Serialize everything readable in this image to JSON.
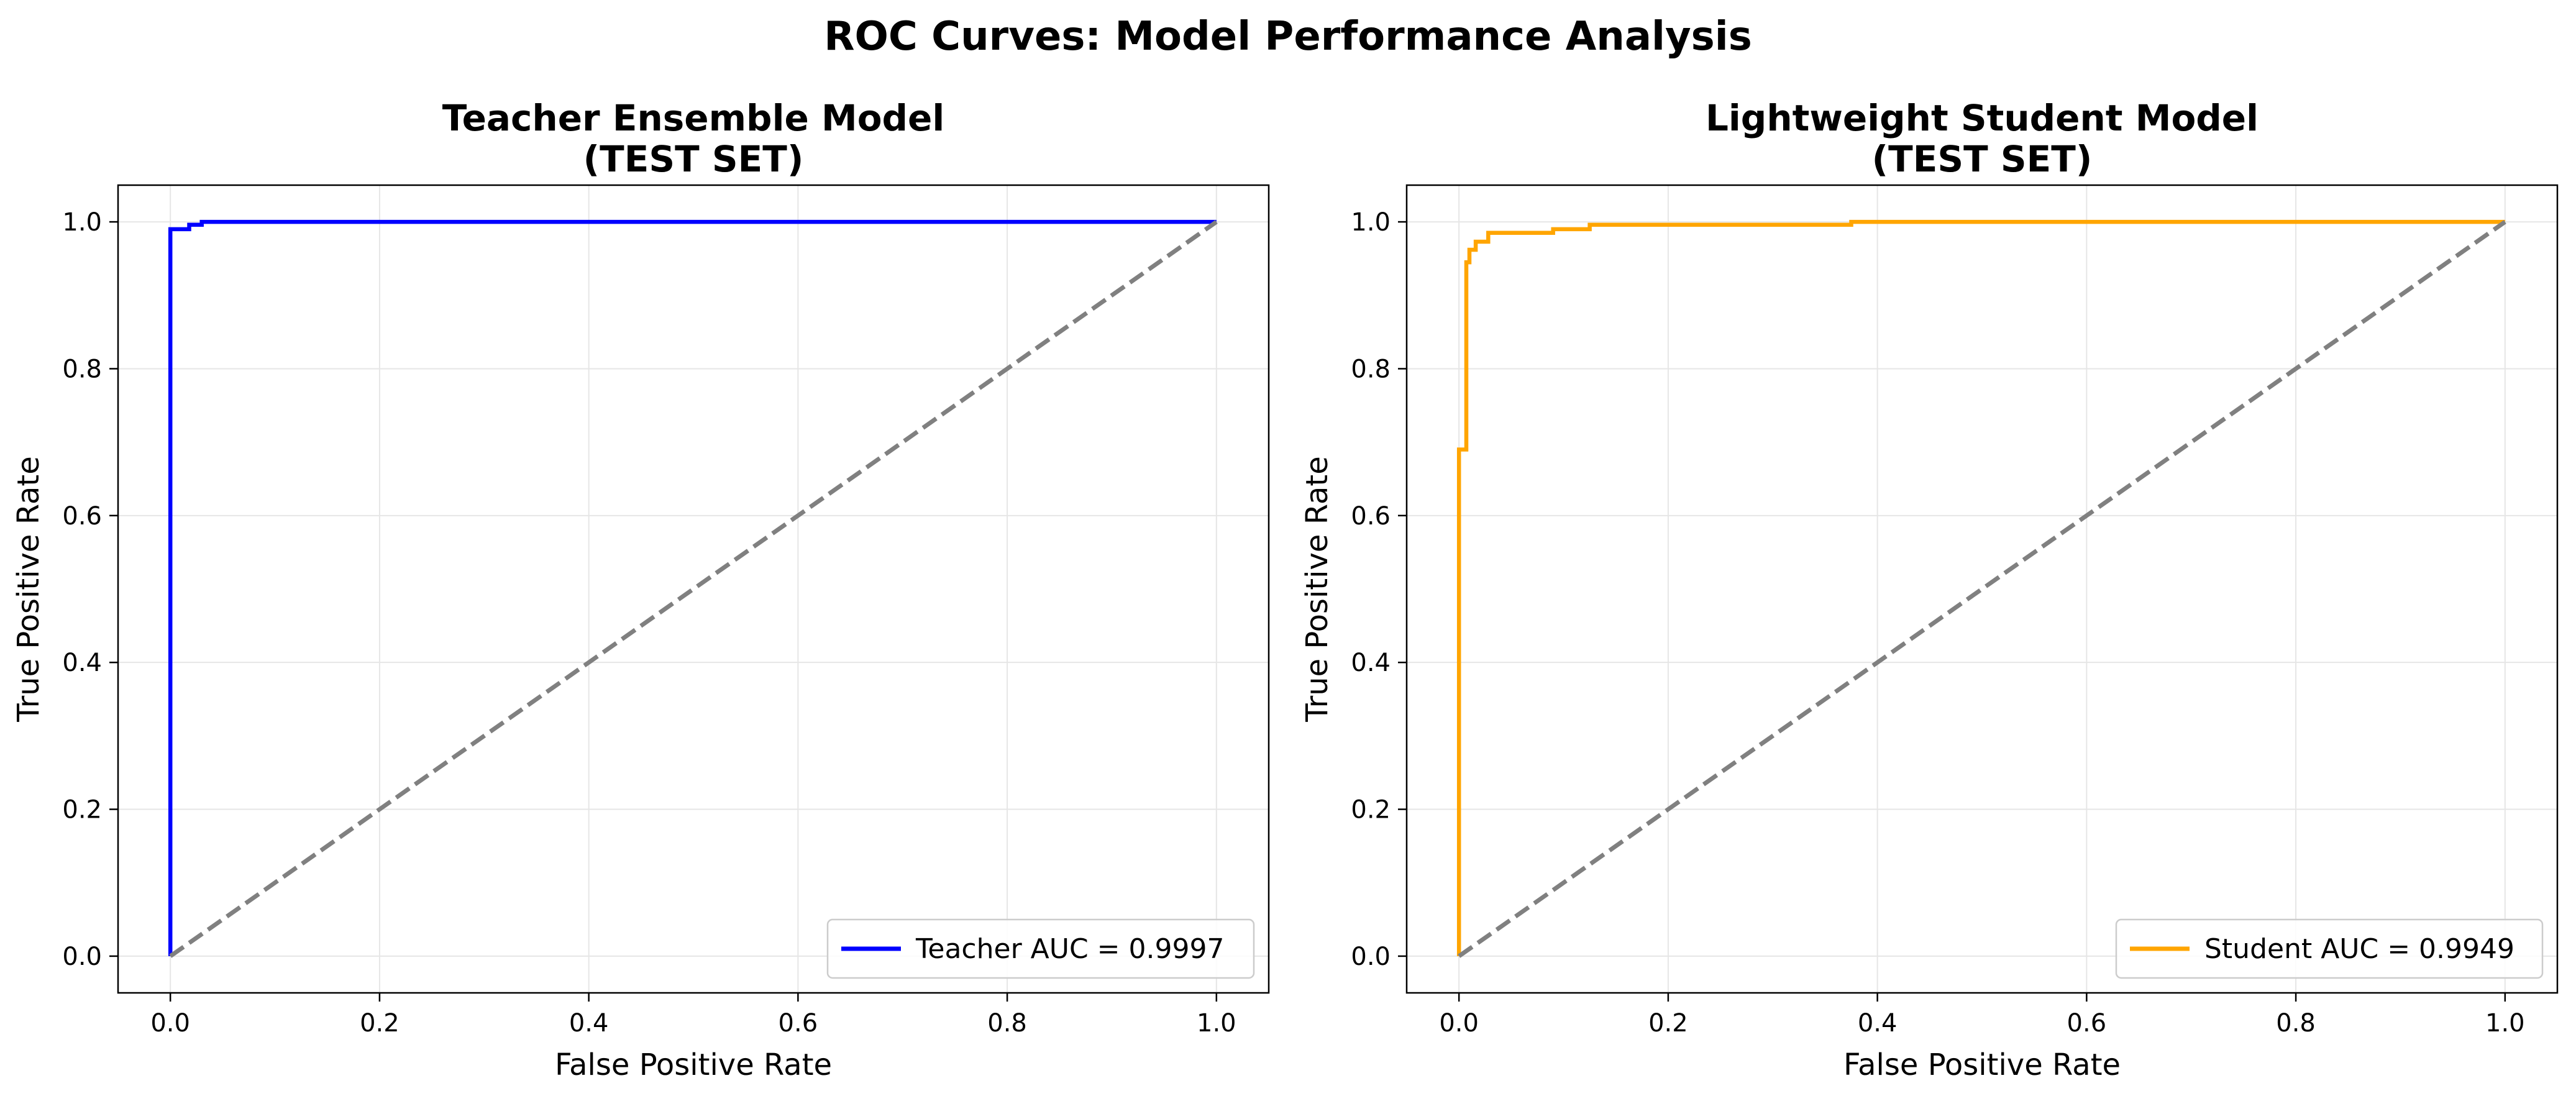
{
  "figure": {
    "title": "ROC Curves: Model Performance Analysis"
  },
  "chart_data": [
    {
      "type": "line",
      "title": "Teacher Ensemble Model\n(TEST SET)",
      "xlabel": "False Positive Rate",
      "ylabel": "True Positive Rate",
      "xlim": [
        -0.05,
        1.05
      ],
      "ylim": [
        -0.05,
        1.05
      ],
      "xticks": [
        "0.0",
        "0.2",
        "0.4",
        "0.6",
        "0.8",
        "1.0"
      ],
      "yticks": [
        "0.0",
        "0.2",
        "0.4",
        "0.6",
        "0.8",
        "1.0"
      ],
      "grid": true,
      "legend_position": "lower-right",
      "series": [
        {
          "name": "Teacher AUC = 0.9997",
          "color": "#0000ff",
          "style": "solid",
          "x": [
            0.0,
            0.0,
            0.0,
            0.018,
            0.018,
            0.03,
            0.03,
            1.0
          ],
          "y": [
            0.0,
            0.99,
            0.99,
            0.99,
            0.996,
            0.996,
            1.0,
            1.0
          ]
        },
        {
          "color": "#808080",
          "style": "dashed",
          "x": [
            0.0,
            1.0
          ],
          "y": [
            0.0,
            1.0
          ]
        }
      ]
    },
    {
      "type": "line",
      "title": "Lightweight Student Model\n(TEST SET)",
      "xlabel": "False Positive Rate",
      "ylabel": "True Positive Rate",
      "xlim": [
        -0.05,
        1.05
      ],
      "ylim": [
        -0.05,
        1.05
      ],
      "xticks": [
        "0.0",
        "0.2",
        "0.4",
        "0.6",
        "0.8",
        "1.0"
      ],
      "yticks": [
        "0.0",
        "0.2",
        "0.4",
        "0.6",
        "0.8",
        "1.0"
      ],
      "grid": true,
      "legend_position": "lower-right",
      "series": [
        {
          "name": "Student AUC = 0.9949",
          "color": "#ffa500",
          "style": "solid",
          "x": [
            0.0,
            0.0,
            0.007,
            0.007,
            0.01,
            0.01,
            0.016,
            0.016,
            0.028,
            0.028,
            0.09,
            0.09,
            0.125,
            0.125,
            0.375,
            0.375,
            1.0
          ],
          "y": [
            0.0,
            0.69,
            0.69,
            0.945,
            0.945,
            0.962,
            0.962,
            0.973,
            0.973,
            0.985,
            0.985,
            0.99,
            0.99,
            0.996,
            0.996,
            1.0,
            1.0
          ]
        },
        {
          "color": "#808080",
          "style": "dashed",
          "x": [
            0.0,
            1.0
          ],
          "y": [
            0.0,
            1.0
          ]
        }
      ]
    }
  ]
}
